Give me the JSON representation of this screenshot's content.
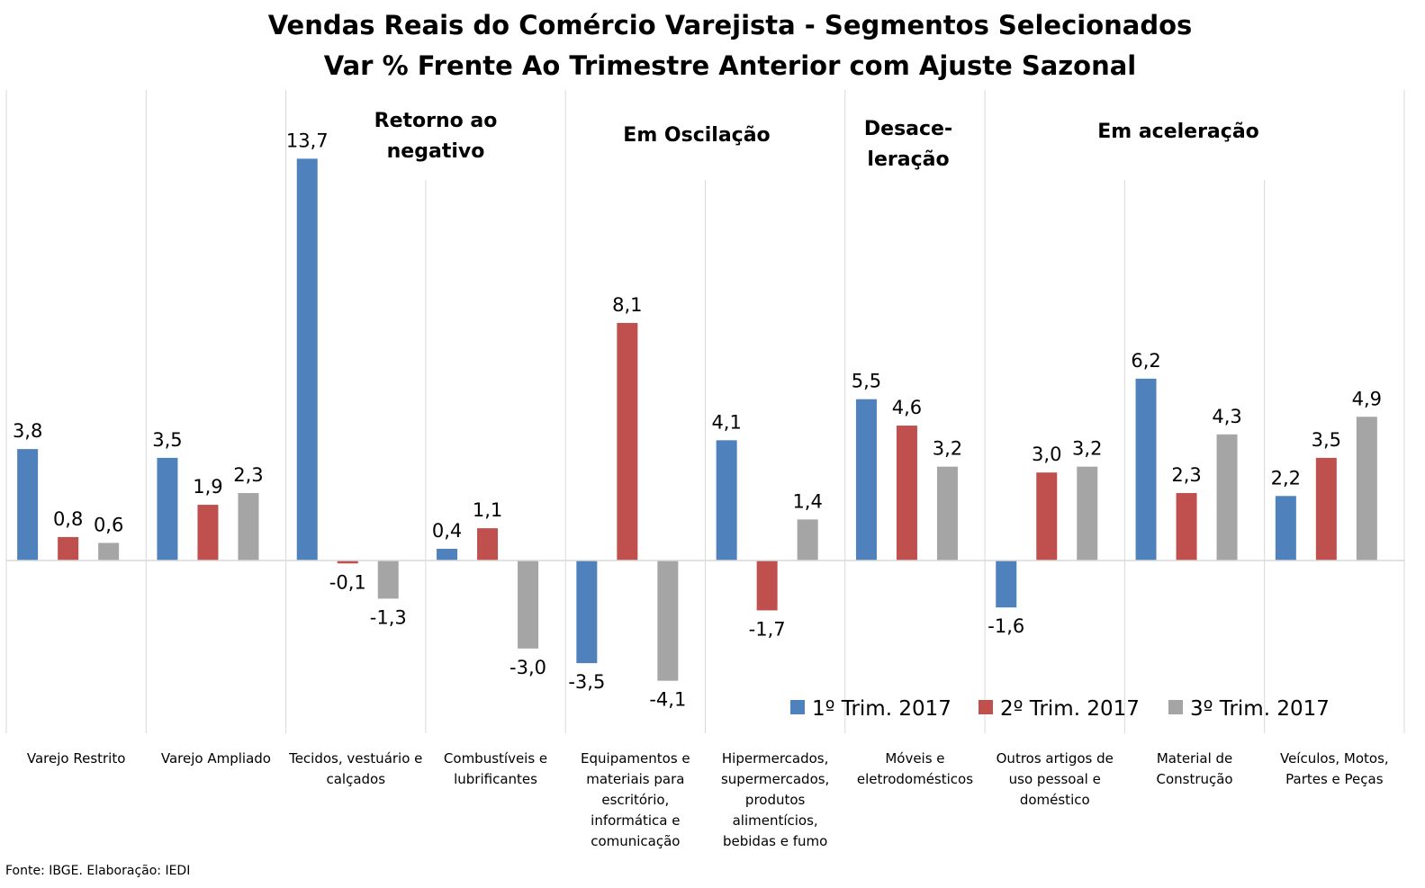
{
  "chart_data": {
    "type": "bar",
    "title": "Vendas Reais do Comércio Varejista - Segmentos Selecionados",
    "subtitle": "Var % Frente Ao Trimestre Anterior com Ajuste Sazonal",
    "categories": [
      "Varejo Restrito",
      "Varejo Ampliado",
      "Tecidos, vestuário e calçados",
      "Combustíveis e lubrificantes",
      "Equipamentos e materiais para escritório, informática e comunicação",
      "Hipermercados, supermercados, produtos alimentícios, bebidas e fumo",
      "Móveis e eletrodomésticos",
      "Outros artigos de uso pessoal e doméstico",
      "Material de Construção",
      "Veículos, Motos, Partes e Peças"
    ],
    "category_lines": [
      [
        "Varejo Restrito"
      ],
      [
        "Varejo Ampliado"
      ],
      [
        "Tecidos, vestuário e",
        "calçados"
      ],
      [
        "Combustíveis e",
        "lubrificantes"
      ],
      [
        "Equipamentos e",
        "materiais para",
        "escritório,",
        "informática e",
        "comunicação"
      ],
      [
        "Hipermercados,",
        "supermercados,",
        "produtos",
        "alimentícios,",
        "bebidas e fumo"
      ],
      [
        "Móveis e",
        "eletrodomésticos"
      ],
      [
        "Outros artigos de",
        "uso pessoal e",
        "doméstico"
      ],
      [
        "Material de",
        "Construção"
      ],
      [
        "Veículos, Motos,",
        "Partes e Peças"
      ]
    ],
    "series": [
      {
        "name": "1º Trim. 2017",
        "color": "#4f81bd",
        "values": [
          3.8,
          3.5,
          13.7,
          0.4,
          -3.5,
          4.1,
          5.5,
          -1.6,
          6.2,
          2.2
        ],
        "labels": [
          "3,8",
          "3,5",
          "13,7",
          "0,4",
          "-3,5",
          "4,1",
          "5,5",
          "-1,6",
          "6,2",
          "2,2"
        ]
      },
      {
        "name": "2º Trim. 2017",
        "color": "#c0504d",
        "values": [
          0.8,
          1.9,
          -0.1,
          1.1,
          8.1,
          -1.7,
          4.6,
          3.0,
          2.3,
          3.5
        ],
        "labels": [
          "0,8",
          "1,9",
          "-0,1",
          "1,1",
          "8,1",
          "-1,7",
          "4,6",
          "3,0",
          "2,3",
          "3,5"
        ]
      },
      {
        "name": "3º Trim. 2017",
        "color": "#a5a5a5",
        "values": [
          0.6,
          2.3,
          -1.3,
          -3.0,
          -4.1,
          1.4,
          3.2,
          3.2,
          4.3,
          4.9
        ],
        "labels": [
          "0,6",
          "2,3",
          "-1,3",
          "-3,0",
          "-4,1",
          "1,4",
          "3,2",
          "3,2",
          "4,3",
          "4,9"
        ]
      }
    ],
    "groups": [
      {
        "lines": [
          "Retorno ao",
          "negativo"
        ]
      },
      {
        "lines": [
          "Em Oscilação"
        ]
      },
      {
        "lines": [
          "Desace-",
          "leração"
        ]
      },
      {
        "lines": [
          "Em aceleração"
        ]
      }
    ],
    "ylim": [
      -6,
      16
    ],
    "grid": false,
    "legend_position": "bottom-right"
  },
  "source": "Fonte: IBGE. Elaboração: IEDI"
}
